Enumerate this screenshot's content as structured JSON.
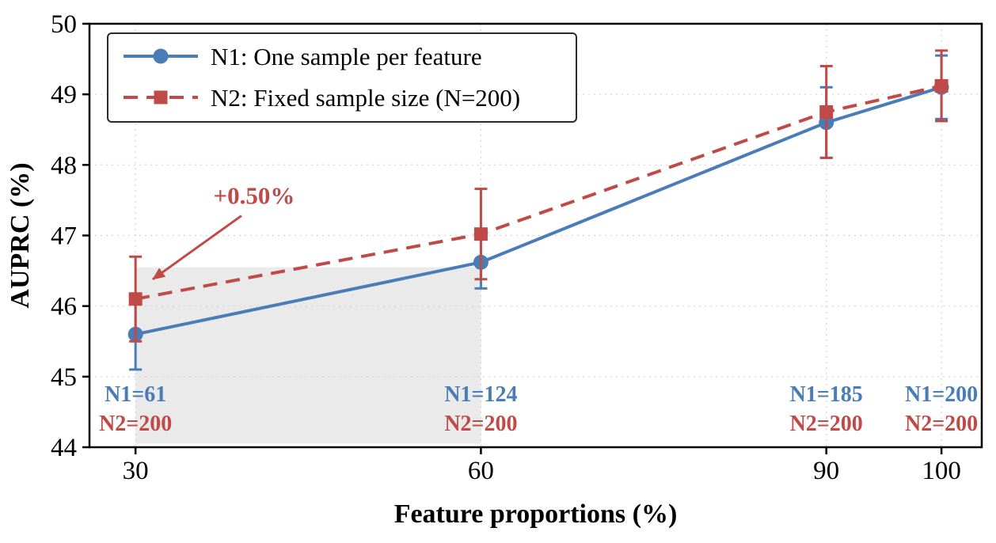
{
  "chart_data": {
    "type": "line",
    "title": "",
    "xlabel": "Feature proportions (%)",
    "ylabel": "AUPRC (%)",
    "x": [
      30,
      60,
      90,
      100
    ],
    "xticks": [
      30,
      60,
      90,
      100
    ],
    "yticks": [
      44,
      45,
      46,
      47,
      48,
      49,
      50
    ],
    "xlim": [
      26,
      103.5
    ],
    "ylim": [
      44,
      50
    ],
    "grid": true,
    "legend_position": "upper-left",
    "series": [
      {
        "name": "N1: One sample per feature",
        "color": "#4a7cb8",
        "line": "solid",
        "marker": "circle",
        "values": [
          45.6,
          46.62,
          48.6,
          49.1
        ],
        "errors": [
          0.5,
          0.37,
          0.5,
          0.45
        ]
      },
      {
        "name": "N2: Fixed sample size (N=200)",
        "color": "#c04a47",
        "line": "dashed",
        "marker": "square",
        "values": [
          46.1,
          47.02,
          48.75,
          49.12
        ],
        "errors": [
          0.6,
          0.64,
          0.65,
          0.5
        ]
      }
    ],
    "annotation": {
      "text": "+0.50%",
      "color": "#c04a47",
      "text_pos": {
        "x": 40.3,
        "y": 47.45
      },
      "arrow_start": {
        "x": 39.2,
        "y": 47.28
      },
      "arrow_end": {
        "x": 31.5,
        "y": 46.38
      }
    },
    "shaded_region": {
      "x0": 30,
      "x1": 60,
      "y0": 44.05,
      "y1": 46.55,
      "color": "#d8d8d8",
      "opacity": 0.55
    },
    "sample_labels": [
      {
        "x": 30,
        "n1": "N1=61",
        "n2": "N2=200"
      },
      {
        "x": 60,
        "n1": "N1=124",
        "n2": "N2=200"
      },
      {
        "x": 90,
        "n1": "N1=185",
        "n2": "N2=200"
      },
      {
        "x": 100,
        "n1": "N1=200",
        "n2": "N2=200"
      }
    ],
    "label_colors": {
      "n1": "#4a7cb8",
      "n2": "#c04a47"
    },
    "frame_color": "#000000",
    "grid_color": "#d4d4d4"
  }
}
